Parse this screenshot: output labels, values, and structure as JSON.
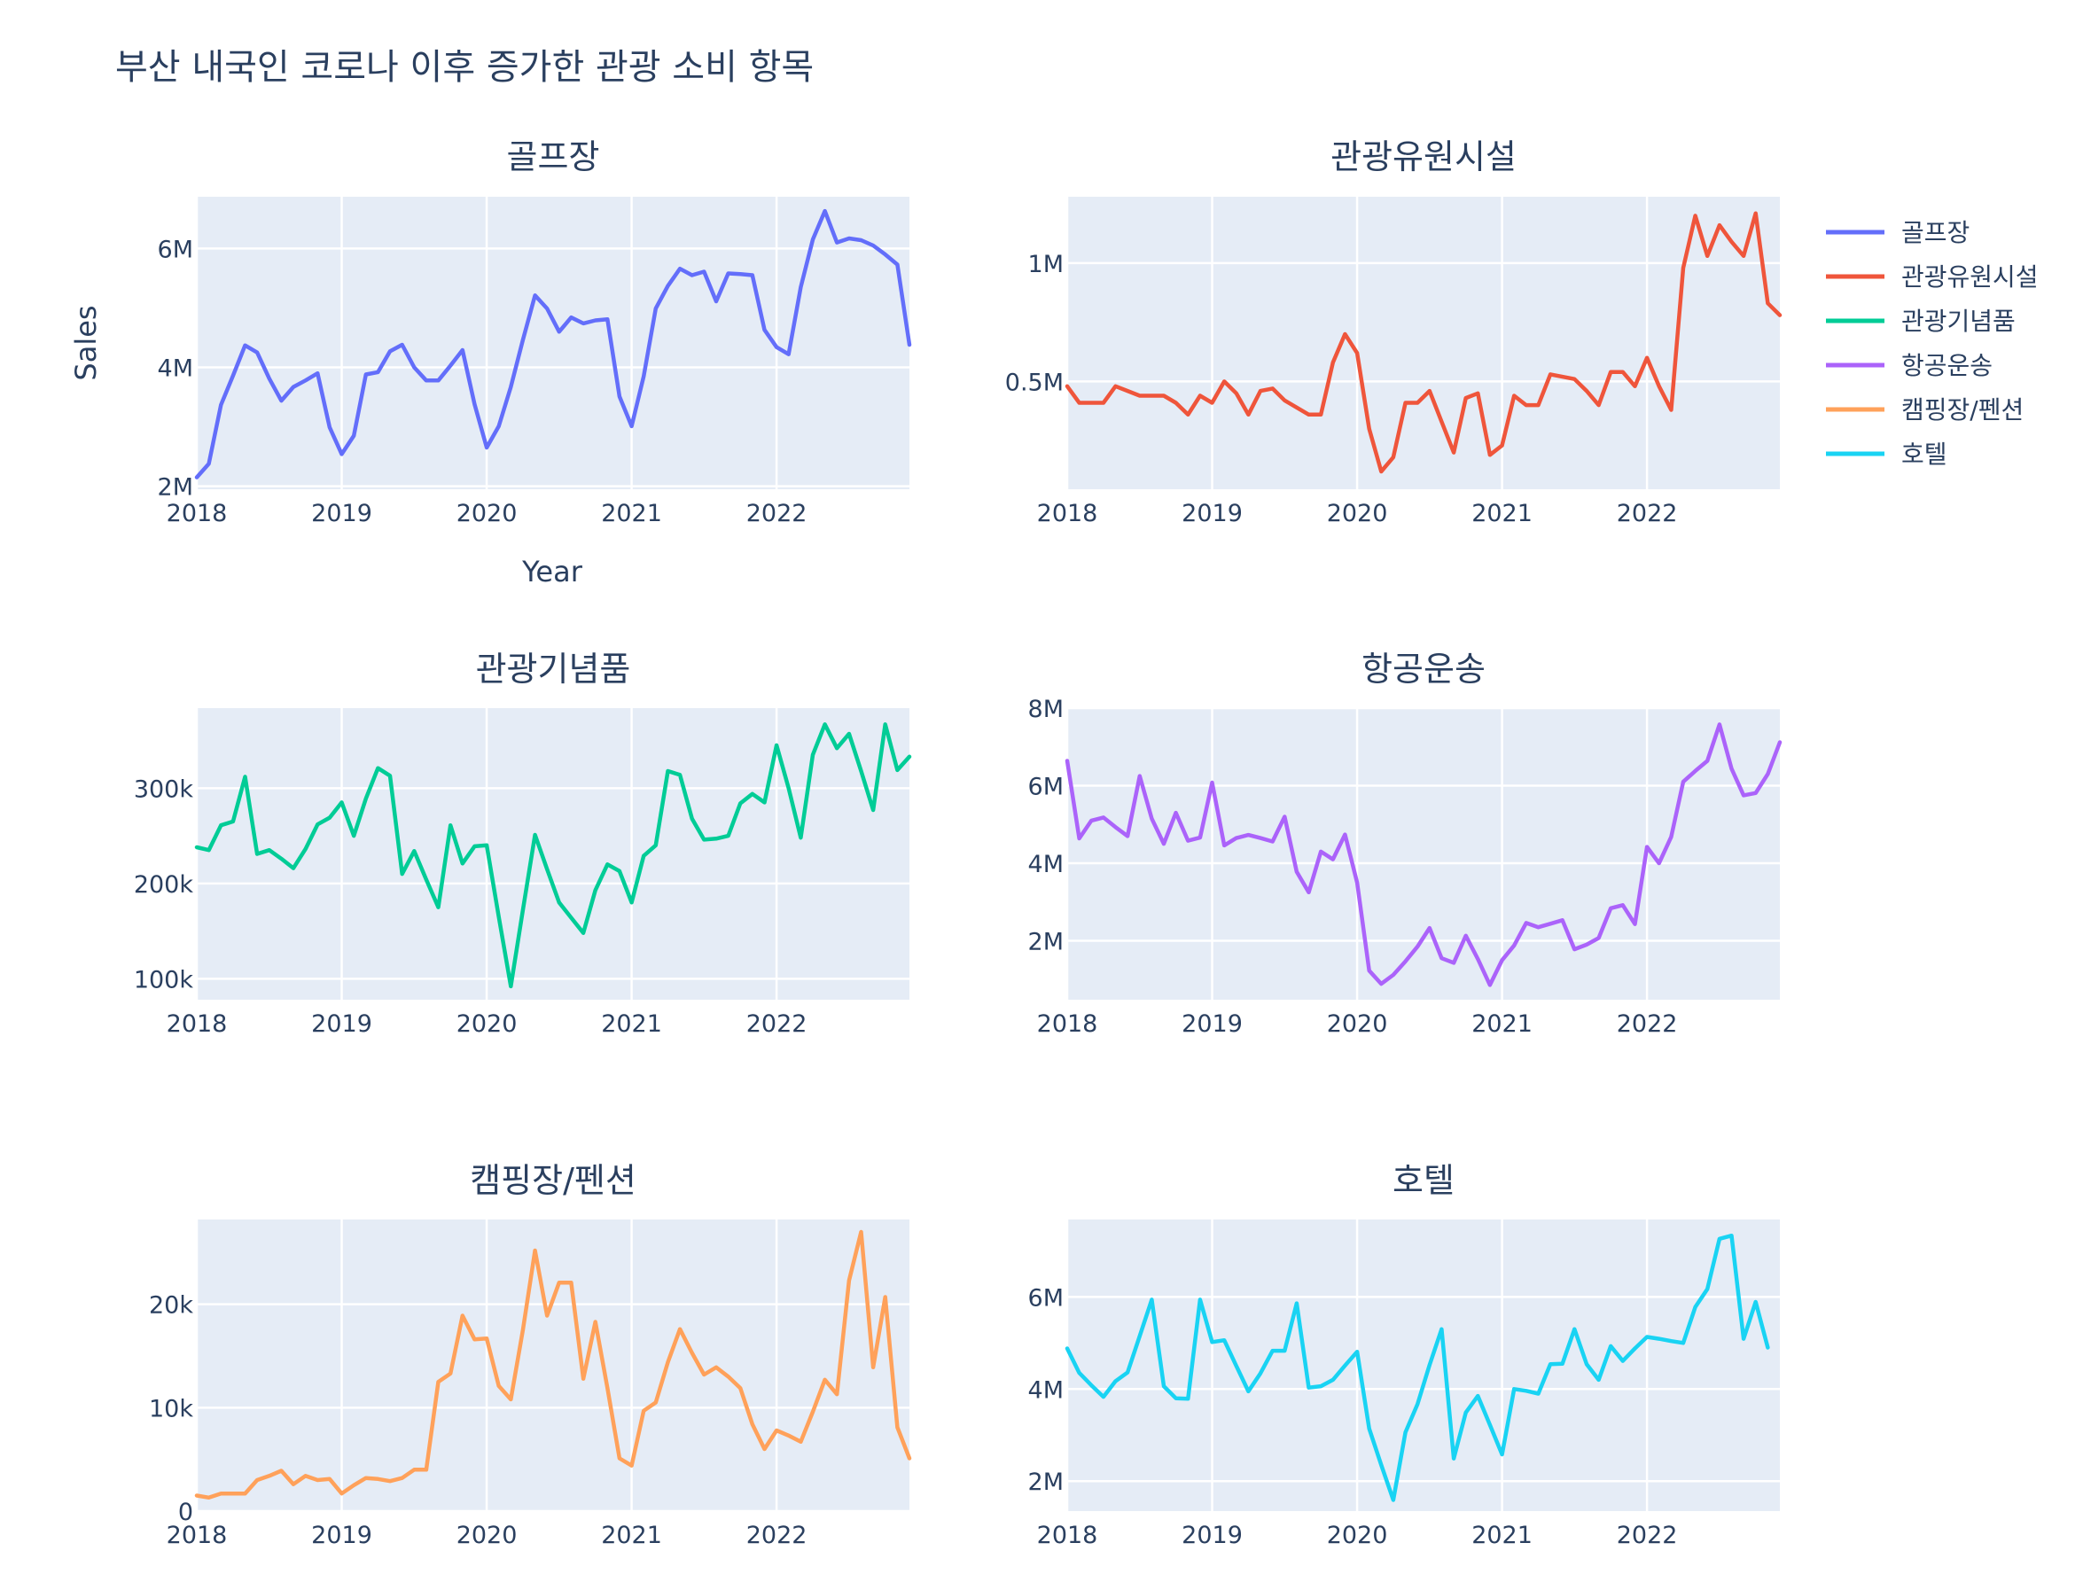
{
  "title": "부산 내국인 코로나 이후 증가한 관광 소비 항목",
  "x_axis_label": "Year",
  "y_axis_label": "Sales",
  "chart_data": {
    "type": "line",
    "title": "부산 내국인 코로나 이후 증가한 관광 소비 항목",
    "xlabel": "Year",
    "ylabel": "Sales",
    "x_ticks": [
      "2018",
      "2019",
      "2020",
      "2021",
      "2022"
    ],
    "legend": [
      "골프장",
      "관광유원시설",
      "관광기념품",
      "항공운송",
      "캠핑장/펜션",
      "호텔"
    ],
    "legend_position": "top-right",
    "grid": true,
    "panels": [
      {
        "name": "골프장",
        "color": "#636efa",
        "xlim": [
          "2018-01",
          "2022-12"
        ],
        "ylim": [
          1950000,
          6870000
        ],
        "yticks": [
          2000000,
          4000000,
          6000000
        ],
        "ytick_labels": [
          "2M",
          "4M",
          "6M"
        ],
        "x": [
          "2018-01",
          "2018-02",
          "2018-03",
          "2018-04",
          "2018-05",
          "2018-06",
          "2018-07",
          "2018-08",
          "2018-09",
          "2018-10",
          "2018-11",
          "2018-12",
          "2019-01",
          "2019-02",
          "2019-03",
          "2019-04",
          "2019-05",
          "2019-06",
          "2019-07",
          "2019-08",
          "2019-09",
          "2019-10",
          "2019-11",
          "2019-12",
          "2020-01",
          "2020-02",
          "2020-03",
          "2020-04",
          "2020-05",
          "2020-06",
          "2020-07",
          "2020-08",
          "2020-09",
          "2020-10",
          "2020-11",
          "2020-12",
          "2021-01",
          "2021-02",
          "2021-03",
          "2021-04",
          "2021-05",
          "2021-06",
          "2021-07",
          "2021-08",
          "2021-09",
          "2021-10",
          "2021-11",
          "2021-12",
          "2022-01",
          "2022-02",
          "2022-03",
          "2022-04",
          "2022-05",
          "2022-06",
          "2022-07",
          "2022-08",
          "2022-09",
          "2022-10",
          "2022-11",
          "2022-12"
        ],
        "values": [
          2150000,
          2380000,
          3370000,
          3860000,
          4370000,
          4250000,
          3810000,
          3440000,
          3670000,
          3780000,
          3900000,
          2990000,
          2540000,
          2850000,
          3880000,
          3920000,
          4270000,
          4380000,
          4000000,
          3780000,
          3780000,
          4030000,
          4290000,
          3380000,
          2650000,
          3010000,
          3670000,
          4460000,
          5210000,
          4990000,
          4600000,
          4840000,
          4740000,
          4790000,
          4810000,
          3510000,
          3010000,
          3850000,
          4990000,
          5370000,
          5660000,
          5550000,
          5610000,
          5110000,
          5580000,
          5570000,
          5550000,
          4630000,
          4340000,
          4220000,
          5350000,
          6150000,
          6630000,
          6100000,
          6170000,
          6140000,
          6050000,
          5900000,
          5730000,
          4380000
        ]
      },
      {
        "name": "관광유원시설",
        "color": "#ef553b",
        "xlim": [
          "2018-01",
          "2022-12"
        ],
        "ylim": [
          45000,
          1280000
        ],
        "yticks": [
          500000,
          1000000
        ],
        "ytick_labels": [
          "0.5M",
          "1M"
        ],
        "x": [
          "2018-01",
          "2018-02",
          "2018-03",
          "2018-04",
          "2018-05",
          "2018-06",
          "2018-07",
          "2018-08",
          "2018-09",
          "2018-10",
          "2018-11",
          "2018-12",
          "2019-01",
          "2019-02",
          "2019-03",
          "2019-04",
          "2019-05",
          "2019-06",
          "2019-07",
          "2019-08",
          "2019-09",
          "2019-10",
          "2019-11",
          "2019-12",
          "2020-01",
          "2020-02",
          "2020-03",
          "2020-04",
          "2020-05",
          "2020-06",
          "2020-07",
          "2020-08",
          "2020-09",
          "2020-10",
          "2020-11",
          "2020-12",
          "2021-01",
          "2021-02",
          "2021-03",
          "2021-04",
          "2021-05",
          "2021-06",
          "2021-07",
          "2021-08",
          "2021-09",
          "2021-10",
          "2021-11",
          "2021-12",
          "2022-01",
          "2022-02",
          "2022-03",
          "2022-04",
          "2022-05",
          "2022-06",
          "2022-07",
          "2022-08",
          "2022-09",
          "2022-10",
          "2022-11",
          "2022-12"
        ],
        "values": [
          480000,
          410000,
          410000,
          410000,
          480000,
          460000,
          440000,
          440000,
          440000,
          410000,
          360000,
          440000,
          410000,
          500000,
          450000,
          360000,
          460000,
          470000,
          420000,
          390000,
          360000,
          360000,
          580000,
          700000,
          620000,
          300000,
          120000,
          180000,
          410000,
          410000,
          460000,
          330000,
          200000,
          430000,
          450000,
          190000,
          230000,
          440000,
          400000,
          400000,
          530000,
          520000,
          510000,
          460000,
          400000,
          540000,
          540000,
          480000,
          600000,
          480000,
          380000,
          980000,
          1200000,
          1030000,
          1160000,
          1090000,
          1030000,
          1210000,
          830000,
          780000
        ]
      },
      {
        "name": "관광기념품",
        "color": "#00cc96",
        "xlim": [
          "2018-01",
          "2022-12"
        ],
        "ylim": [
          78000,
          384000
        ],
        "yticks": [
          100000,
          200000,
          300000
        ],
        "ytick_labels": [
          "100k",
          "200k",
          "300k"
        ],
        "x": [
          "2018-01",
          "2018-02",
          "2018-03",
          "2018-04",
          "2018-05",
          "2018-06",
          "2018-07",
          "2018-08",
          "2018-09",
          "2018-10",
          "2018-11",
          "2018-12",
          "2019-01",
          "2019-02",
          "2019-03",
          "2019-04",
          "2019-05",
          "2019-06",
          "2019-07",
          "2019-08",
          "2019-09",
          "2019-10",
          "2019-11",
          "2019-12",
          "2020-01",
          "2020-02",
          "2020-03",
          "2020-04",
          "2020-05",
          "2020-06",
          "2020-07",
          "2020-08",
          "2020-09",
          "2020-10",
          "2020-11",
          "2020-12",
          "2021-01",
          "2021-02",
          "2021-03",
          "2021-04",
          "2021-05",
          "2021-06",
          "2021-07",
          "2021-08",
          "2021-09",
          "2021-10",
          "2021-11",
          "2021-12",
          "2022-01",
          "2022-02",
          "2022-03",
          "2022-04",
          "2022-05",
          "2022-06",
          "2022-07",
          "2022-08",
          "2022-09",
          "2022-10",
          "2022-11",
          "2022-12"
        ],
        "values": [
          238000,
          235000,
          261000,
          265000,
          312000,
          231000,
          235000,
          226000,
          216000,
          236000,
          262000,
          269000,
          285000,
          250000,
          289000,
          321000,
          313000,
          210000,
          234000,
          204000,
          175000,
          261000,
          221000,
          239000,
          240000,
          165000,
          92000,
          172000,
          251000,
          215000,
          180000,
          164000,
          148000,
          193000,
          220000,
          213000,
          180000,
          229000,
          240000,
          318000,
          314000,
          268000,
          246000,
          247000,
          250000,
          284000,
          294000,
          285000,
          345000,
          300000,
          248000,
          335000,
          367000,
          342000,
          357000,
          318000,
          277000,
          367000,
          319000,
          333000
        ]
      },
      {
        "name": "항공운송",
        "color": "#ab63fa",
        "xlim": [
          "2018-01",
          "2022-12"
        ],
        "ylim": [
          480000,
          8000000
        ],
        "yticks": [
          2000000,
          4000000,
          6000000,
          8000000
        ],
        "ytick_labels": [
          "2M",
          "4M",
          "6M",
          "8M"
        ],
        "x": [
          "2018-01",
          "2018-02",
          "2018-03",
          "2018-04",
          "2018-05",
          "2018-06",
          "2018-07",
          "2018-08",
          "2018-09",
          "2018-10",
          "2018-11",
          "2018-12",
          "2019-01",
          "2019-02",
          "2019-03",
          "2019-04",
          "2019-05",
          "2019-06",
          "2019-07",
          "2019-08",
          "2019-09",
          "2019-10",
          "2019-11",
          "2019-12",
          "2020-01",
          "2020-02",
          "2020-03",
          "2020-04",
          "2020-05",
          "2020-06",
          "2020-07",
          "2020-08",
          "2020-09",
          "2020-10",
          "2020-11",
          "2020-12",
          "2021-01",
          "2021-02",
          "2021-03",
          "2021-04",
          "2021-05",
          "2021-06",
          "2021-07",
          "2021-08",
          "2021-09",
          "2021-10",
          "2021-11",
          "2021-12",
          "2022-01",
          "2022-02",
          "2022-03",
          "2022-04",
          "2022-05",
          "2022-06",
          "2022-07",
          "2022-08",
          "2022-09",
          "2022-10",
          "2022-11",
          "2022-12"
        ],
        "values": [
          6640000,
          4640000,
          5100000,
          5180000,
          4930000,
          4700000,
          6250000,
          5150000,
          4500000,
          5300000,
          4580000,
          4660000,
          6080000,
          4460000,
          4650000,
          4730000,
          4650000,
          4560000,
          5200000,
          3780000,
          3250000,
          4300000,
          4100000,
          4740000,
          3500000,
          1230000,
          890000,
          1120000,
          1470000,
          1850000,
          2330000,
          1550000,
          1430000,
          2130000,
          1530000,
          860000,
          1500000,
          1880000,
          2460000,
          2350000,
          2440000,
          2530000,
          1780000,
          1900000,
          2070000,
          2840000,
          2920000,
          2430000,
          4420000,
          4000000,
          4680000,
          6100000,
          6380000,
          6640000,
          7580000,
          6440000,
          5750000,
          5810000,
          6300000,
          7120000
        ]
      },
      {
        "name": "캠핑장/펜션",
        "color": "#ffa15a",
        "xlim": [
          "2018-01",
          "2022-12"
        ],
        "ylim": [
          0,
          28200
        ],
        "yticks": [
          0,
          10000,
          20000
        ],
        "ytick_labels": [
          "0",
          "10k",
          "20k"
        ],
        "x": [
          "2018-01",
          "2018-02",
          "2018-03",
          "2018-04",
          "2018-05",
          "2018-06",
          "2018-07",
          "2018-08",
          "2018-09",
          "2018-10",
          "2018-11",
          "2018-12",
          "2019-01",
          "2019-02",
          "2019-03",
          "2019-04",
          "2019-05",
          "2019-06",
          "2019-07",
          "2019-08",
          "2019-09",
          "2019-10",
          "2019-11",
          "2019-12",
          "2020-01",
          "2020-02",
          "2020-03",
          "2020-04",
          "2020-05",
          "2020-06",
          "2020-07",
          "2020-08",
          "2020-09",
          "2020-10",
          "2020-11",
          "2020-12",
          "2021-01",
          "2021-02",
          "2021-03",
          "2021-04",
          "2021-05",
          "2021-06",
          "2021-07",
          "2021-08",
          "2021-09",
          "2021-10",
          "2021-11",
          "2021-12",
          "2022-01",
          "2022-02",
          "2022-03",
          "2022-04",
          "2022-05",
          "2022-06",
          "2022-07",
          "2022-08",
          "2022-09",
          "2022-10",
          "2022-11",
          "2022-12"
        ],
        "values": [
          1500,
          1300,
          1700,
          1700,
          1700,
          3000,
          3400,
          3900,
          2600,
          3400,
          3000,
          3100,
          1700,
          2500,
          3200,
          3100,
          2900,
          3200,
          4000,
          4000,
          12500,
          13300,
          18900,
          16600,
          16700,
          12100,
          10800,
          17500,
          25200,
          18900,
          22100,
          22100,
          12800,
          18300,
          11900,
          5100,
          4400,
          9700,
          10500,
          14400,
          17600,
          15300,
          13200,
          13900,
          13000,
          11900,
          8400,
          6000,
          7800,
          7300,
          6700,
          9600,
          12700,
          11300,
          22300,
          27000,
          13900,
          20700,
          8100,
          5100
        ]
      },
      {
        "name": "호텔",
        "color": "#19d3f3",
        "xlim": [
          "2018-01",
          "2022-12"
        ],
        "ylim": [
          1350000,
          7680000
        ],
        "yticks": [
          2000000,
          4000000,
          6000000
        ],
        "ytick_labels": [
          "2M",
          "4M",
          "6M"
        ],
        "x": [
          "2018-01",
          "2018-02",
          "2018-03",
          "2018-04",
          "2018-05",
          "2018-06",
          "2018-07",
          "2018-08",
          "2018-09",
          "2018-10",
          "2018-11",
          "2018-12",
          "2019-01",
          "2019-02",
          "2019-03",
          "2019-04",
          "2019-05",
          "2019-06",
          "2019-07",
          "2019-08",
          "2019-09",
          "2019-10",
          "2019-11",
          "2019-12",
          "2020-01",
          "2020-02",
          "2020-03",
          "2020-04",
          "2020-05",
          "2020-06",
          "2020-07",
          "2020-08",
          "2020-09",
          "2020-10",
          "2020-11",
          "2020-12",
          "2021-01",
          "2021-02",
          "2021-03",
          "2021-04",
          "2021-05",
          "2021-06",
          "2021-07",
          "2021-08",
          "2021-09",
          "2021-10",
          "2021-11",
          "2021-12",
          "2022-01",
          "2022-02",
          "2022-03",
          "2022-04",
          "2022-05",
          "2022-06",
          "2022-07",
          "2022-08",
          "2022-09",
          "2022-10",
          "2022-11"
        ],
        "values": [
          4880000,
          4350000,
          4080000,
          3830000,
          4170000,
          4360000,
          5150000,
          5940000,
          4060000,
          3800000,
          3790000,
          5940000,
          5020000,
          5060000,
          4500000,
          3950000,
          4340000,
          4830000,
          4830000,
          5860000,
          4030000,
          4060000,
          4200000,
          4510000,
          4810000,
          3140000,
          2350000,
          1590000,
          3060000,
          3670000,
          4520000,
          5300000,
          2490000,
          3490000,
          3850000,
          3220000,
          2580000,
          4000000,
          3960000,
          3900000,
          4540000,
          4550000,
          5300000,
          4540000,
          4200000,
          4930000,
          4610000,
          4880000,
          5130000,
          5090000,
          5040000,
          5000000,
          5780000,
          6170000,
          7260000,
          7330000,
          5090000,
          5890000,
          4900000
        ]
      }
    ]
  }
}
